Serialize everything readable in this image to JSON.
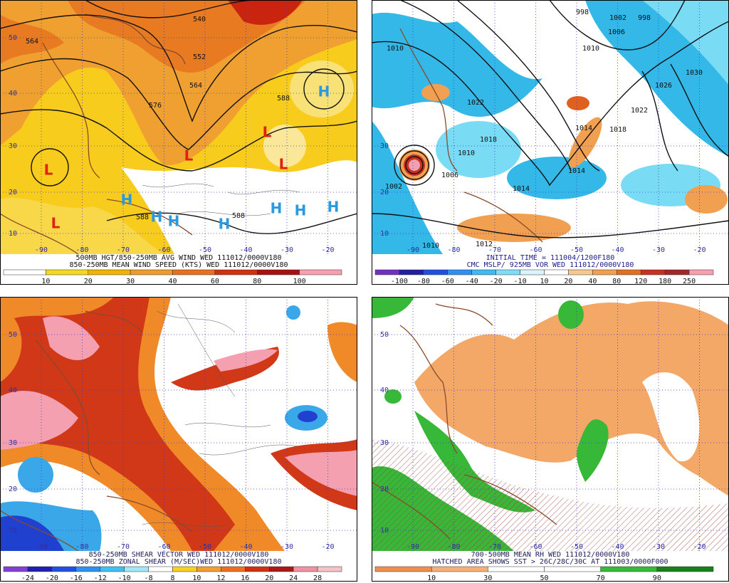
{
  "panels": [
    {
      "caption": [
        "500MB HGT/850-250MB AVG WIND WED 111012/0000V180",
        "850-250MB MEAN WIND SPEED (KTS) WED 111012/0000V180"
      ],
      "colorbar": [
        10,
        20,
        30,
        40,
        60,
        80,
        100
      ],
      "lat_labels": [
        50,
        40,
        30,
        20,
        10
      ],
      "lon_labels": [
        -90,
        -80,
        -70,
        -60,
        -50,
        -40,
        -30,
        -20
      ],
      "map_labels": [
        "564",
        "540",
        "552",
        "564",
        "576",
        "588",
        "588",
        "588",
        "L",
        "L",
        "L",
        "L",
        "L",
        "H",
        "H",
        "H",
        "H",
        "H",
        "H",
        "H",
        "H"
      ]
    },
    {
      "caption": [
        "INITIAL TIME = 111004/1200F180",
        "CMC MSLP/ 925MB VOR WED 111012/0000V180"
      ],
      "colorbar": [
        -100,
        -80,
        -60,
        -40,
        -20,
        -10,
        10,
        20,
        40,
        80,
        120,
        180,
        250
      ],
      "lat_labels": [
        30,
        20,
        10
      ],
      "lon_labels": [
        -90,
        -80,
        -70,
        -60,
        -50,
        -40,
        -30,
        -20
      ],
      "map_labels": [
        "998",
        "1002",
        "998",
        "1006",
        "1010",
        "1030",
        "1026",
        "1022",
        "1018",
        "1014",
        "1014",
        "1018",
        "1014",
        "1010",
        "1006",
        "1002",
        "1010",
        "1012",
        "1022",
        "1010"
      ]
    },
    {
      "caption": [
        "850-250MB SHEAR VECTOR WED 111012/0000V180",
        "850-250MB ZONAL SHEAR (M/SEC)WED 111012/0000V180"
      ],
      "colorbar": [
        -24,
        -20,
        -16,
        -12,
        -10,
        -8,
        8,
        10,
        12,
        16,
        20,
        24,
        28
      ],
      "lat_labels": [
        50,
        40,
        30,
        20,
        10
      ],
      "lon_labels": [
        -90,
        -80,
        -70,
        -60,
        -50,
        -40,
        -30,
        -20
      ],
      "map_labels": []
    },
    {
      "caption": [
        "700-500MB MEAN RH WED 111012/0000V180",
        "HATCHED AREA SHOWS SST > 26C/28C/30C AT 111003/0000F000"
      ],
      "colorbar": [
        10,
        30,
        50,
        70,
        90
      ],
      "lat_labels": [
        50,
        40,
        30,
        20,
        10
      ],
      "lon_labels": [
        -90,
        -80,
        -70,
        -60,
        -50,
        -40,
        -30,
        -20
      ],
      "map_labels": []
    }
  ]
}
